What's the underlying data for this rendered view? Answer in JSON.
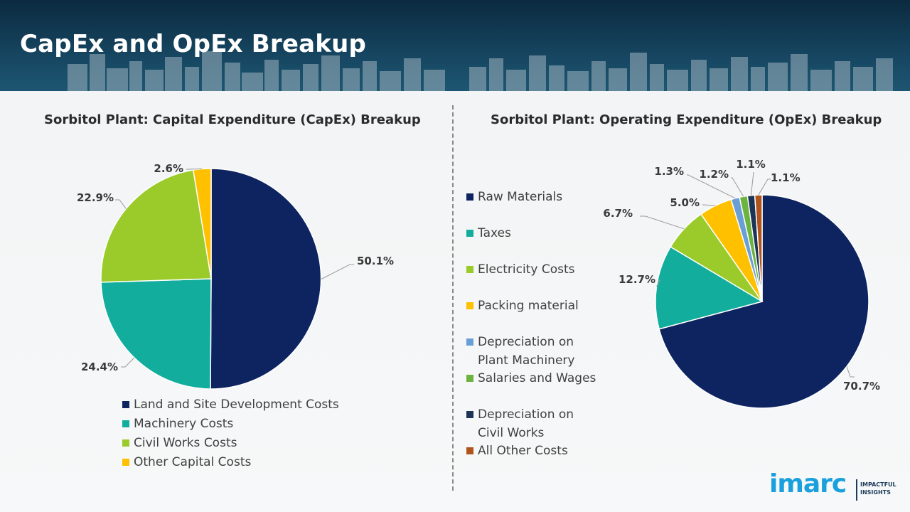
{
  "page": {
    "title": "CapEx and OpEx Breakup"
  },
  "brand": {
    "logo": "imarc",
    "tagline_1": "IMPACTFUL",
    "tagline_2": "INSIGHTS"
  },
  "colors": {
    "navy": "#0d2461",
    "teal": "#13ad9e",
    "green": "#9acb2b",
    "yellow": "#ffc000",
    "light_blue": "#6a9fd6",
    "mid_green": "#6db33f",
    "dark_slate": "#1c3557",
    "brown": "#b0541c",
    "header_bg": "#164560"
  },
  "chart_data": [
    {
      "type": "pie",
      "title": "Sorbitol Plant: Capital Expenditure (CapEx) Breakup",
      "categories": [
        "Land and Site Development Costs",
        "Machinery Costs",
        "Civil Works Costs",
        "Other Capital Costs"
      ],
      "values": [
        50.1,
        24.4,
        22.9,
        2.6
      ],
      "labels": [
        "50.1%",
        "24.4%",
        "22.9%",
        "2.6%"
      ],
      "colors": [
        "#0d2461",
        "#13ad9e",
        "#9acb2b",
        "#ffc000"
      ],
      "legend_position": "bottom"
    },
    {
      "type": "pie",
      "title": "Sorbitol Plant: Operating Expenditure (OpEx) Breakup",
      "categories": [
        "Raw Materials",
        "Taxes",
        "Electricity Costs",
        "Packing material",
        "Depreciation on Plant Machinery",
        "Salaries and Wages",
        "Depreciation on Civil Works",
        "All Other Costs"
      ],
      "legend_lines": [
        [
          "Raw Materials"
        ],
        [
          "Taxes"
        ],
        [
          "Electricity Costs"
        ],
        [
          "Packing material"
        ],
        [
          "Depreciation on",
          "Plant Machinery"
        ],
        [
          "Salaries and Wages"
        ],
        [
          "Depreciation on",
          "Civil Works"
        ],
        [
          "All Other Costs"
        ]
      ],
      "values": [
        70.7,
        12.7,
        6.7,
        5.0,
        1.3,
        1.2,
        1.1,
        1.1
      ],
      "labels": [
        "70.7%",
        "12.7%",
        "6.7%",
        "5.0%",
        "1.3%",
        "1.2%",
        "1.1%",
        "1.1%"
      ],
      "colors": [
        "#0d2461",
        "#13ad9e",
        "#9acb2b",
        "#ffc000",
        "#6a9fd6",
        "#6db33f",
        "#1c3557",
        "#b0541c"
      ],
      "legend_position": "left"
    }
  ]
}
